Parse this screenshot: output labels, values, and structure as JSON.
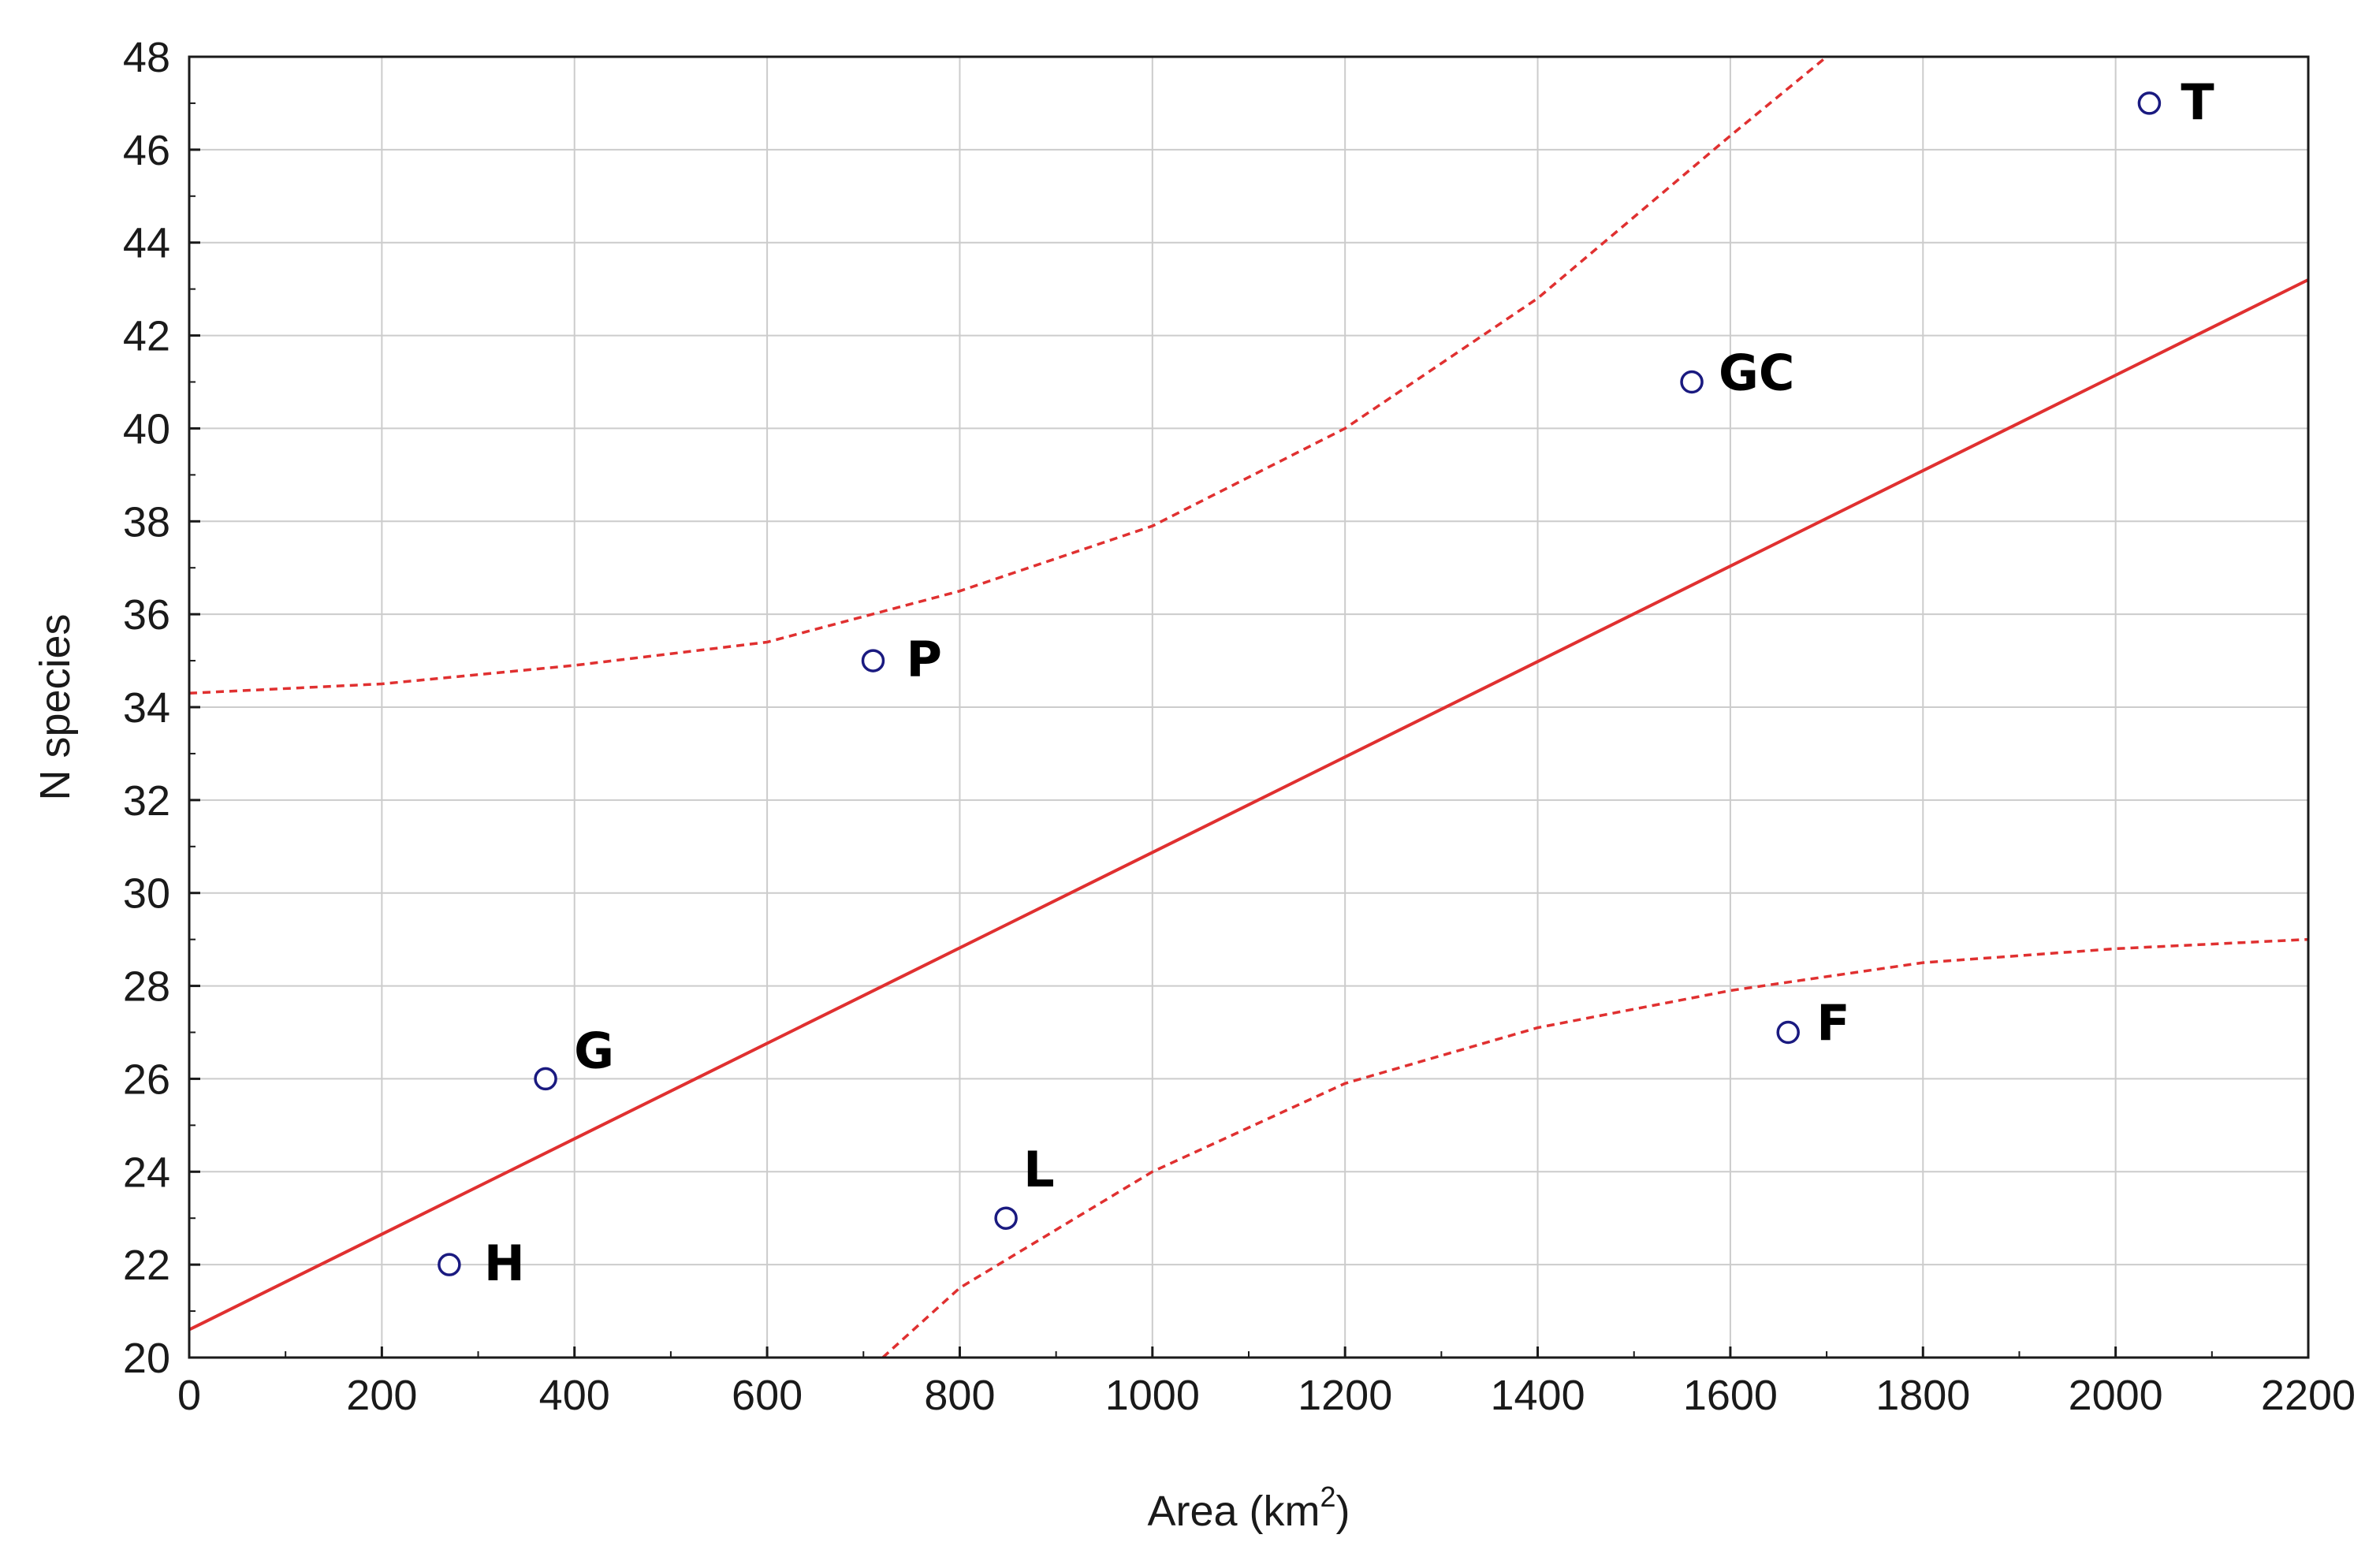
{
  "chart_data": {
    "type": "scatter",
    "xlabel": "Area (km",
    "xlabel_superscript": "2",
    "xlabel_close": ")",
    "ylabel": "N species",
    "xlim": [
      0,
      2200
    ],
    "ylim": [
      20,
      48
    ],
    "x_ticks": [
      "0",
      "200",
      "400",
      "600",
      "800",
      "1000",
      "1200",
      "1400",
      "1600",
      "1800",
      "2000",
      "2200"
    ],
    "y_ticks": [
      "20",
      "22",
      "24",
      "26",
      "28",
      "30",
      "32",
      "34",
      "36",
      "38",
      "40",
      "42",
      "44",
      "46",
      "48"
    ],
    "grid": true,
    "points": [
      {
        "label": "H",
        "x": 270,
        "y": 22
      },
      {
        "label": "G",
        "x": 370,
        "y": 26
      },
      {
        "label": "P",
        "x": 710,
        "y": 35
      },
      {
        "label": "L",
        "x": 848,
        "y": 23
      },
      {
        "label": "GC",
        "x": 1560,
        "y": 41
      },
      {
        "label": "F",
        "x": 1660,
        "y": 27
      },
      {
        "label": "T",
        "x": 2035,
        "y": 47
      }
    ],
    "regression_line": {
      "x": [
        0,
        2200
      ],
      "y": [
        20.6,
        43.2
      ]
    },
    "confidence_upper": {
      "x": [
        0,
        200,
        400,
        600,
        800,
        1000,
        1200,
        1400,
        1600,
        1700
      ],
      "y": [
        34.3,
        34.5,
        34.9,
        35.4,
        36.5,
        37.9,
        40.0,
        42.8,
        46.3,
        48.0
      ]
    },
    "confidence_lower": {
      "x": [
        720,
        800,
        1000,
        1200,
        1400,
        1600,
        1800,
        2000,
        2200
      ],
      "y": [
        20.0,
        21.5,
        24.0,
        25.9,
        27.1,
        27.9,
        28.5,
        28.8,
        29.0
      ]
    },
    "colors": {
      "line": "#e03030",
      "points": "#1a1a80",
      "grid": "#cccccc",
      "axis": "#1a1a1a"
    }
  }
}
